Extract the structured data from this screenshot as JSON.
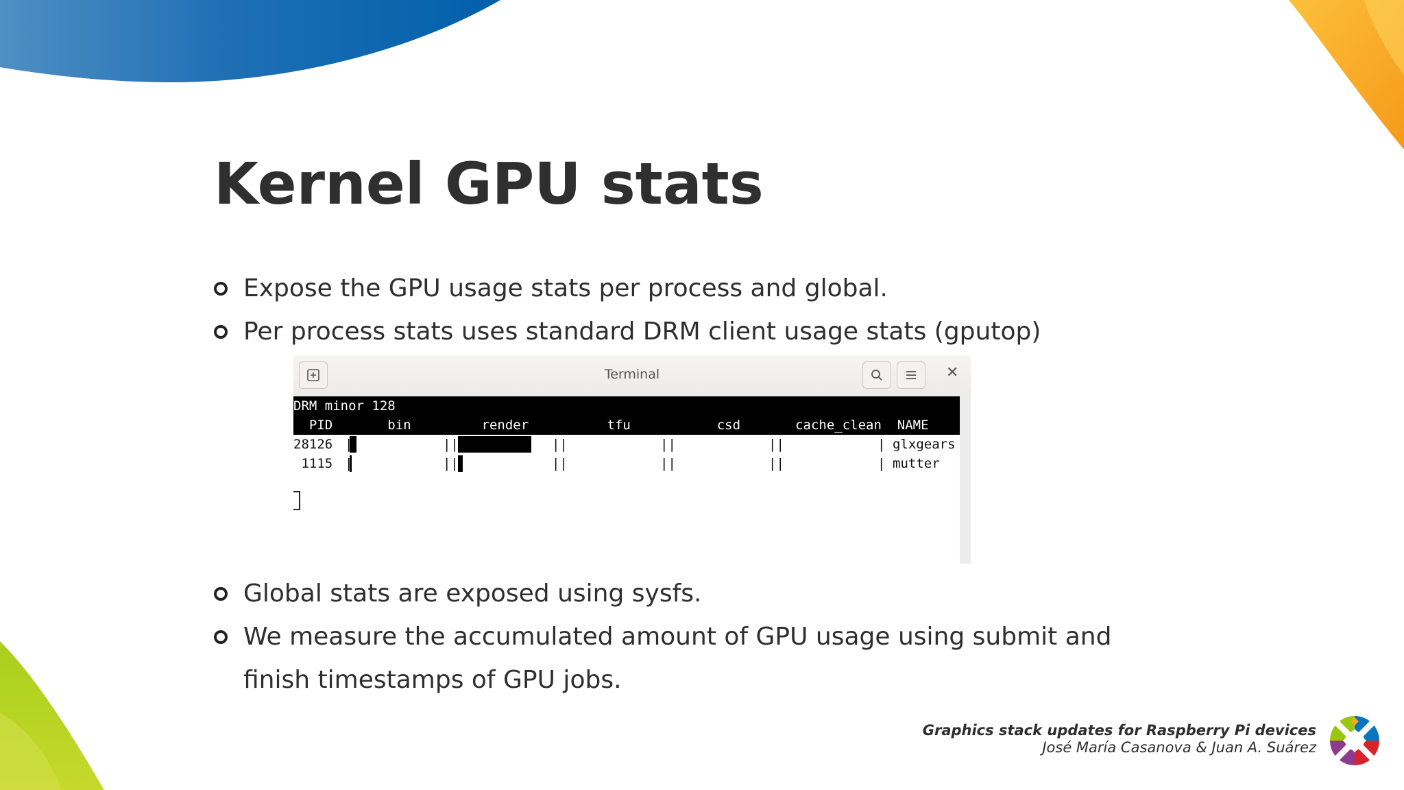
{
  "slide": {
    "title": "Kernel GPU stats",
    "bullets_top": [
      "Expose the GPU usage stats per process and global.",
      "Per process stats uses standard DRM client usage stats (gputop)"
    ],
    "bullets_bottom": [
      "Global stats are exposed using sysfs.",
      "We measure the accumulated amount of GPU usage using submit and finish timestamps of GPU jobs."
    ],
    "footer": {
      "title": "Graphics stack updates for Raspberry Pi devices",
      "authors": "José María Casanova & Juan A. Suárez"
    }
  },
  "terminal": {
    "window_title": "Terminal",
    "header_line": "DRM minor 128",
    "columns_line": "  PID       bin         render          tfu           csd       cache_clean  NAME",
    "rows": [
      {
        "pid": "28126",
        "name": "glxgears"
      },
      {
        "pid": " 1115",
        "name": "mutter"
      }
    ],
    "usage_bars": {
      "glxgears": {
        "bin": 0.08,
        "render": 0.82
      },
      "mutter": {
        "bin": 0.01,
        "render": 0.05
      }
    }
  },
  "colors": {
    "title_text": "#2f2f2f",
    "blue_accent": "#0163ac",
    "orange_accent": "#f7a823",
    "green_accent": "#9bc50f"
  },
  "icons": [
    "new-tab-icon",
    "search-icon",
    "menu-icon",
    "close-icon",
    "bullet-circle-icon",
    "logo-icon"
  ]
}
